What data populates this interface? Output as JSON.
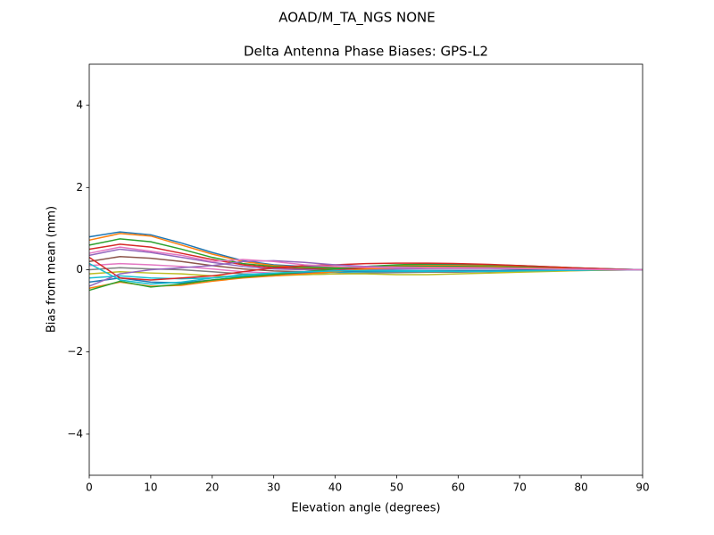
{
  "chart_data": {
    "type": "line",
    "suptitle": "AOAD/M_TA_NGS   NONE",
    "title": "Delta Antenna Phase Biases: GPS-L2",
    "xlabel": "Elevation angle (degrees)",
    "ylabel": "Bias from mean (mm)",
    "xlim": [
      0,
      90
    ],
    "ylim": [
      -5,
      5
    ],
    "xticks": [
      0,
      10,
      20,
      30,
      40,
      50,
      60,
      70,
      80,
      90
    ],
    "yticks": [
      {
        "value": -4,
        "label": "−4"
      },
      {
        "value": -2,
        "label": "−2"
      },
      0,
      2,
      4
    ],
    "x": [
      0,
      5,
      10,
      15,
      20,
      25,
      30,
      35,
      40,
      45,
      50,
      55,
      60,
      65,
      70,
      75,
      80,
      85,
      90
    ],
    "series": [
      {
        "color": "#1f77b4",
        "values": [
          0.8,
          0.92,
          0.85,
          0.65,
          0.42,
          0.22,
          0.12,
          0.08,
          0.06,
          0.08,
          0.1,
          0.12,
          0.12,
          0.1,
          0.08,
          0.06,
          0.04,
          0.02,
          0
        ]
      },
      {
        "color": "#ff7f0e",
        "values": [
          0.72,
          0.88,
          0.82,
          0.6,
          0.38,
          0.2,
          0.1,
          0.06,
          0.05,
          0.07,
          0.09,
          0.1,
          0.1,
          0.09,
          0.07,
          0.05,
          0.03,
          0.01,
          0
        ]
      },
      {
        "color": "#2ca02c",
        "values": [
          0.6,
          0.75,
          0.68,
          0.5,
          0.3,
          0.15,
          0.08,
          0.05,
          0.04,
          0.05,
          0.07,
          0.08,
          0.08,
          0.07,
          0.06,
          0.04,
          0.03,
          0.01,
          0
        ]
      },
      {
        "color": "#d62728",
        "values": [
          0.5,
          0.62,
          0.55,
          0.4,
          0.25,
          0.12,
          0.05,
          0.02,
          0.01,
          0.03,
          0.05,
          0.06,
          0.06,
          0.05,
          0.04,
          0.03,
          0.02,
          0.01,
          0
        ]
      },
      {
        "color": "#9467bd",
        "values": [
          0.35,
          0.5,
          0.42,
          0.3,
          0.18,
          0.08,
          0.02,
          0,
          -0.02,
          0,
          0.02,
          0.03,
          0.03,
          0.03,
          0.02,
          0.01,
          0.01,
          0,
          0
        ]
      },
      {
        "color": "#8c564b",
        "values": [
          0.2,
          0.32,
          0.28,
          0.2,
          0.1,
          0.02,
          -0.03,
          -0.05,
          -0.06,
          -0.05,
          -0.03,
          -0.02,
          -0.02,
          -0.02,
          -0.01,
          -0.01,
          0,
          0,
          0
        ]
      },
      {
        "color": "#e377c2",
        "values": [
          0.1,
          0.15,
          0.12,
          0.08,
          0.02,
          -0.05,
          -0.08,
          -0.1,
          -0.1,
          -0.08,
          -0.06,
          -0.05,
          -0.05,
          -0.04,
          -0.03,
          -0.02,
          -0.01,
          0,
          0
        ]
      },
      {
        "color": "#7f7f7f",
        "values": [
          0,
          0.05,
          0.02,
          0,
          -0.05,
          -0.1,
          -0.12,
          -0.12,
          -0.1,
          -0.08,
          -0.07,
          -0.06,
          -0.06,
          -0.05,
          -0.04,
          -0.03,
          -0.02,
          -0.01,
          0
        ]
      },
      {
        "color": "#bcbd22",
        "values": [
          -0.1,
          -0.05,
          -0.08,
          -0.1,
          -0.15,
          -0.18,
          -0.15,
          -0.12,
          -0.1,
          -0.1,
          -0.12,
          -0.12,
          -0.1,
          -0.08,
          -0.06,
          -0.04,
          -0.02,
          -0.01,
          0
        ]
      },
      {
        "color": "#17becf",
        "values": [
          -0.2,
          -0.15,
          -0.2,
          -0.22,
          -0.2,
          -0.15,
          -0.1,
          -0.08,
          -0.06,
          -0.05,
          -0.04,
          -0.04,
          -0.03,
          -0.03,
          -0.02,
          -0.02,
          -0.01,
          0,
          0
        ]
      },
      {
        "color": "#1f77b4",
        "values": [
          -0.3,
          -0.2,
          -0.3,
          -0.32,
          -0.25,
          -0.18,
          -0.12,
          -0.08,
          -0.05,
          -0.03,
          -0.02,
          -0.02,
          -0.02,
          -0.02,
          -0.01,
          -0.01,
          0,
          0,
          0
        ]
      },
      {
        "color": "#ff7f0e",
        "values": [
          -0.45,
          -0.3,
          -0.4,
          -0.38,
          -0.28,
          -0.2,
          -0.15,
          -0.1,
          -0.05,
          0.02,
          0.05,
          0.06,
          0.06,
          0.05,
          0.04,
          0.03,
          0.02,
          0.01,
          0
        ]
      },
      {
        "color": "#2ca02c",
        "values": [
          -0.5,
          -0.28,
          -0.42,
          -0.35,
          -0.25,
          -0.18,
          -0.12,
          -0.05,
          0.02,
          0.08,
          0.12,
          0.14,
          0.14,
          0.12,
          0.1,
          0.07,
          0.04,
          0.02,
          0
        ]
      },
      {
        "color": "#d62728",
        "values": [
          0.3,
          -0.2,
          -0.25,
          -0.2,
          -0.15,
          -0.05,
          0.05,
          0.1,
          0.12,
          0.15,
          0.16,
          0.16,
          0.15,
          0.13,
          0.1,
          0.07,
          0.04,
          0.02,
          0
        ]
      },
      {
        "color": "#9467bd",
        "values": [
          -0.4,
          -0.1,
          0,
          0.05,
          0.1,
          0.2,
          0.22,
          0.18,
          0.12,
          0.08,
          0.06,
          0.05,
          0.05,
          0.04,
          0.03,
          0.02,
          0.01,
          0,
          0
        ]
      },
      {
        "color": "#17becf",
        "values": [
          0.15,
          -0.25,
          -0.35,
          -0.3,
          -0.2,
          -0.12,
          -0.08,
          -0.05,
          -0.03,
          -0.02,
          -0.02,
          -0.03,
          -0.04,
          -0.04,
          -0.03,
          -0.02,
          -0.01,
          0,
          0
        ]
      },
      {
        "color": "#e377c2",
        "values": [
          0.4,
          0.55,
          0.45,
          0.35,
          0.2,
          0.25,
          0.2,
          0.12,
          0.08,
          0.06,
          0.05,
          0.05,
          0.04,
          0.04,
          0.03,
          0.02,
          0.01,
          0,
          0
        ]
      }
    ]
  }
}
